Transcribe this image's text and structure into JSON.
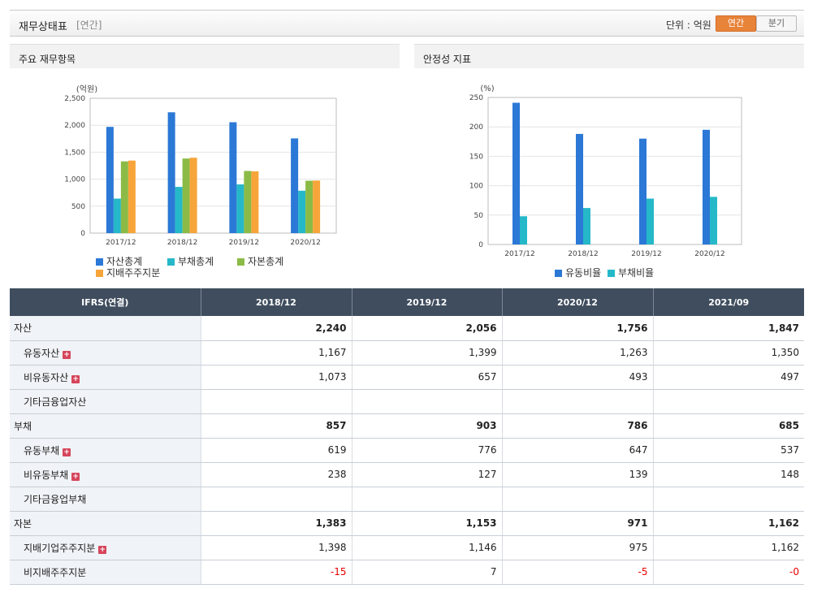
{
  "header": {
    "title": "재무상태표",
    "period_tag": "[연간]",
    "unit_label": "단위 : 억원",
    "btn_annual": "연간",
    "btn_quarter": "분기"
  },
  "panels": {
    "left_title": "주요 재무항목",
    "right_title": "안정성 지표"
  },
  "colors": {
    "blue": "#2b78d6",
    "teal": "#25b8c9",
    "green": "#8bbb46",
    "orange": "#f7a53a"
  },
  "chart_data": [
    {
      "type": "bar",
      "ylabel": "(억원)",
      "ylim": [
        0,
        2500
      ],
      "yticks": [
        0,
        500,
        1000,
        1500,
        2000,
        2500
      ],
      "ytick_labels": [
        "0",
        "500",
        "1,000",
        "1,500",
        "2,000",
        "2,500"
      ],
      "categories": [
        "2017/12",
        "2018/12",
        "2019/12",
        "2020/12"
      ],
      "series": [
        {
          "name": "자산총계",
          "color": "#2b78d6",
          "values": [
            1970,
            2240,
            2056,
            1756
          ]
        },
        {
          "name": "부채총계",
          "color": "#25b8c9",
          "values": [
            640,
            857,
            903,
            786
          ]
        },
        {
          "name": "자본총계",
          "color": "#8bbb46",
          "values": [
            1330,
            1383,
            1153,
            971
          ]
        },
        {
          "name": "지배주주지분",
          "color": "#f7a53a",
          "values": [
            1345,
            1398,
            1146,
            975
          ]
        }
      ],
      "grid": true,
      "legend": "bottom"
    },
    {
      "type": "bar",
      "ylabel": "(%)",
      "ylim": [
        0,
        250
      ],
      "yticks": [
        0,
        50,
        100,
        150,
        200,
        250
      ],
      "ytick_labels": [
        "0",
        "50",
        "100",
        "150",
        "200",
        "250"
      ],
      "categories": [
        "2017/12",
        "2018/12",
        "2019/12",
        "2020/12"
      ],
      "series": [
        {
          "name": "유동비율",
          "color": "#2b78d6",
          "values": [
            241,
            188,
            180,
            195
          ]
        },
        {
          "name": "부채비율",
          "color": "#25b8c9",
          "values": [
            48,
            62,
            78,
            81
          ]
        }
      ],
      "grid": true,
      "legend": "bottom"
    }
  ],
  "table": {
    "headers": [
      "IFRS(연결)",
      "2018/12",
      "2019/12",
      "2020/12",
      "2021/09"
    ],
    "rows": [
      {
        "label": "자산",
        "level": 0,
        "bold": true,
        "plus": false,
        "values": [
          "2,240",
          "2,056",
          "1,756",
          "1,847"
        ]
      },
      {
        "label": "유동자산",
        "level": 1,
        "bold": false,
        "plus": true,
        "values": [
          "1,167",
          "1,399",
          "1,263",
          "1,350"
        ]
      },
      {
        "label": "비유동자산",
        "level": 1,
        "bold": false,
        "plus": true,
        "values": [
          "1,073",
          "657",
          "493",
          "497"
        ]
      },
      {
        "label": "기타금융업자산",
        "level": 1,
        "bold": false,
        "plus": false,
        "values": [
          "",
          "",
          "",
          ""
        ]
      },
      {
        "label": "부채",
        "level": 0,
        "bold": true,
        "plus": false,
        "values": [
          "857",
          "903",
          "786",
          "685"
        ]
      },
      {
        "label": "유동부채",
        "level": 1,
        "bold": false,
        "plus": true,
        "values": [
          "619",
          "776",
          "647",
          "537"
        ]
      },
      {
        "label": "비유동부채",
        "level": 1,
        "bold": false,
        "plus": true,
        "values": [
          "238",
          "127",
          "139",
          "148"
        ]
      },
      {
        "label": "기타금융업부채",
        "level": 1,
        "bold": false,
        "plus": false,
        "values": [
          "",
          "",
          "",
          ""
        ]
      },
      {
        "label": "자본",
        "level": 0,
        "bold": true,
        "plus": false,
        "values": [
          "1,383",
          "1,153",
          "971",
          "1,162"
        ]
      },
      {
        "label": "지배기업주주지분",
        "level": 1,
        "bold": false,
        "plus": true,
        "values": [
          "1,398",
          "1,146",
          "975",
          "1,162"
        ]
      },
      {
        "label": "비지배주주지분",
        "level": 1,
        "bold": false,
        "plus": false,
        "values": [
          "-15",
          "7",
          "-5",
          "-0"
        ]
      }
    ]
  }
}
